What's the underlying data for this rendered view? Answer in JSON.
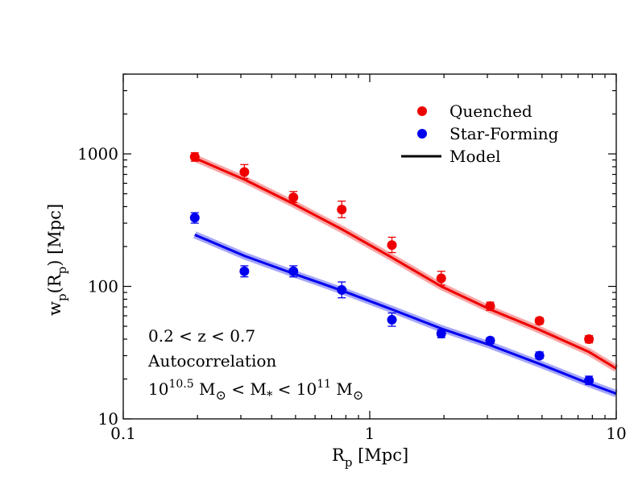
{
  "chart_data": {
    "type": "scatter",
    "xscale": "log",
    "yscale": "log",
    "xlim": [
      0.1,
      10
    ],
    "ylim": [
      10,
      4000
    ],
    "xticks": [
      {
        "value": 0.1,
        "label": "0.1"
      },
      {
        "value": 1,
        "label": "1"
      },
      {
        "value": 10,
        "label": "10"
      }
    ],
    "yticks": [
      {
        "value": 10,
        "label": "10"
      },
      {
        "value": 100,
        "label": "100"
      },
      {
        "value": 1000,
        "label": "1000"
      }
    ],
    "xlabel": {
      "main": "R",
      "sub": "p",
      "rest": " [Mpc]"
    },
    "ylabel": {
      "w": "w",
      "wsub": "p",
      "open": "(R",
      "rsub": "p",
      "close": ") [Mpc]"
    },
    "legend": {
      "placement": "top-right",
      "entries": [
        {
          "label": "Quenched",
          "kind": "point",
          "color": "#ee0000"
        },
        {
          "label": "Star-Forming",
          "kind": "point",
          "color": "#0000ee"
        },
        {
          "label": "Model",
          "kind": "line",
          "color": "#000000"
        }
      ]
    },
    "annotations": {
      "line1": "0.2 < z < 0.7",
      "line2": "Autocorrelation",
      "line3": {
        "a": "10",
        "a_sup": "10.5",
        "b": " M",
        "c": " < M",
        "c_sub": "*",
        "d": " < 10",
        "d_sup": "11",
        "e": " M"
      }
    },
    "series": [
      {
        "name": "Quenched",
        "color": "#ee0000",
        "points": [
          {
            "x": 0.195,
            "y": 950,
            "ylo": 880,
            "yhi": 1020
          },
          {
            "x": 0.31,
            "y": 730,
            "ylo": 650,
            "yhi": 830
          },
          {
            "x": 0.49,
            "y": 470,
            "ylo": 430,
            "yhi": 520
          },
          {
            "x": 0.77,
            "y": 380,
            "ylo": 330,
            "yhi": 440
          },
          {
            "x": 1.23,
            "y": 205,
            "ylo": 180,
            "yhi": 235
          },
          {
            "x": 1.95,
            "y": 115,
            "ylo": 102,
            "yhi": 130
          },
          {
            "x": 3.08,
            "y": 71,
            "ylo": 66,
            "yhi": 76
          },
          {
            "x": 4.88,
            "y": 55,
            "ylo": 52,
            "yhi": 58
          },
          {
            "x": 7.75,
            "y": 40,
            "ylo": 37.5,
            "yhi": 42.5
          }
        ],
        "model": [
          {
            "x": 0.195,
            "y": 930
          },
          {
            "x": 0.31,
            "y": 640
          },
          {
            "x": 0.49,
            "y": 420
          },
          {
            "x": 0.77,
            "y": 270
          },
          {
            "x": 1.23,
            "y": 165
          },
          {
            "x": 1.95,
            "y": 100
          },
          {
            "x": 3.08,
            "y": 67
          },
          {
            "x": 4.88,
            "y": 47
          },
          {
            "x": 7.75,
            "y": 32
          },
          {
            "x": 10,
            "y": 24
          }
        ]
      },
      {
        "name": "Star-Forming",
        "color": "#0000ee",
        "points": [
          {
            "x": 0.195,
            "y": 330,
            "ylo": 300,
            "yhi": 360
          },
          {
            "x": 0.31,
            "y": 130,
            "ylo": 118,
            "yhi": 143
          },
          {
            "x": 0.49,
            "y": 130,
            "ylo": 118,
            "yhi": 143
          },
          {
            "x": 0.77,
            "y": 94,
            "ylo": 82,
            "yhi": 108
          },
          {
            "x": 1.23,
            "y": 56,
            "ylo": 50,
            "yhi": 63
          },
          {
            "x": 1.95,
            "y": 44,
            "ylo": 41,
            "yhi": 47
          },
          {
            "x": 3.08,
            "y": 39,
            "ylo": 37,
            "yhi": 41
          },
          {
            "x": 4.88,
            "y": 30,
            "ylo": 28.5,
            "yhi": 32
          },
          {
            "x": 7.75,
            "y": 19.5,
            "ylo": 18.2,
            "yhi": 21
          }
        ],
        "model": [
          {
            "x": 0.195,
            "y": 245
          },
          {
            "x": 0.31,
            "y": 170
          },
          {
            "x": 0.49,
            "y": 125
          },
          {
            "x": 0.77,
            "y": 93
          },
          {
            "x": 1.23,
            "y": 67
          },
          {
            "x": 1.95,
            "y": 48
          },
          {
            "x": 3.08,
            "y": 36
          },
          {
            "x": 4.88,
            "y": 26
          },
          {
            "x": 7.75,
            "y": 18.5
          },
          {
            "x": 10,
            "y": 15.5
          }
        ]
      }
    ]
  }
}
